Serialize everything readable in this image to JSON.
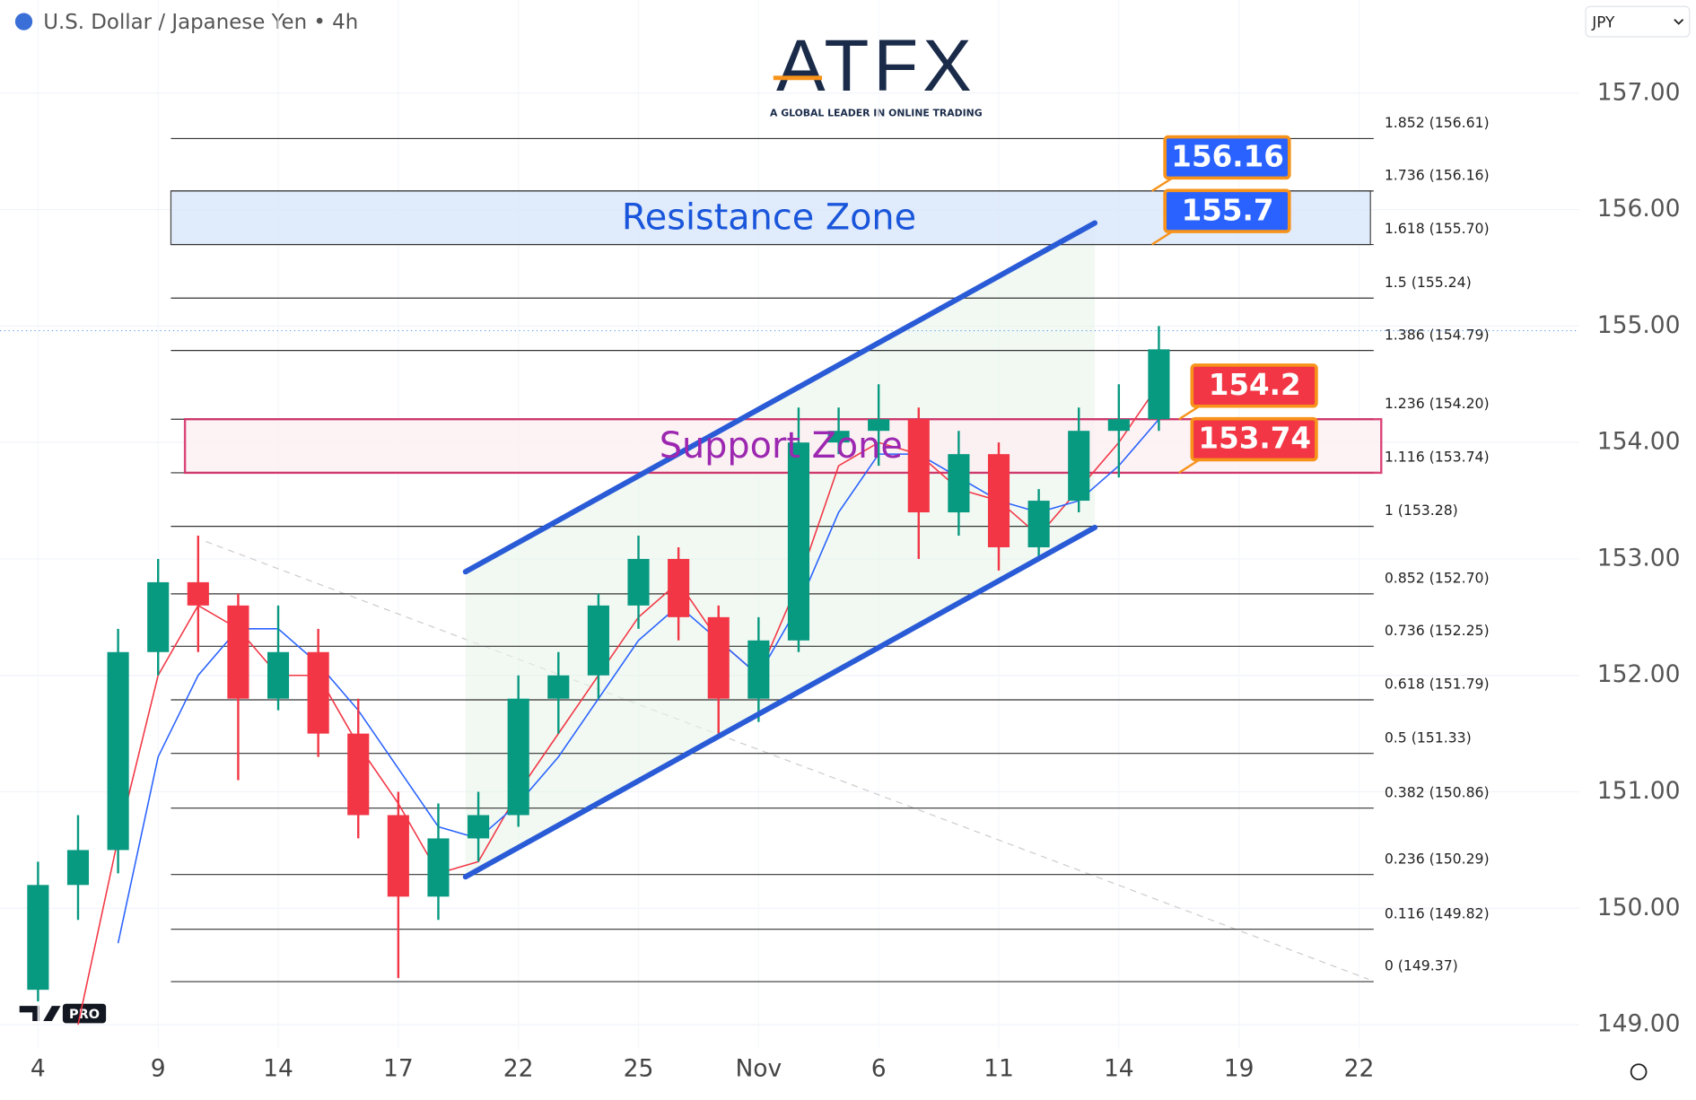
{
  "chart_data": {
    "type": "candlestick",
    "title": "U.S. Dollar / Japanese Yen • 4h",
    "currency": "JPY",
    "x": [
      0,
      1,
      2,
      3,
      4,
      5,
      6,
      7,
      8,
      9,
      10,
      11,
      12,
      13,
      14,
      15,
      16,
      17,
      18,
      19,
      20,
      21,
      22,
      23,
      24,
      25,
      26,
      27,
      28
    ],
    "open": [
      149.3,
      150.2,
      150.5,
      152.2,
      152.8,
      152.6,
      151.8,
      152.2,
      151.5,
      150.8,
      150.1,
      150.6,
      150.8,
      151.8,
      152.0,
      152.6,
      153.0,
      152.5,
      151.8,
      152.3,
      154.0,
      154.1,
      154.2,
      153.4,
      153.9,
      153.1,
      153.5,
      154.1,
      154.2
    ],
    "high": [
      150.4,
      150.8,
      152.4,
      153.0,
      153.2,
      152.7,
      152.6,
      152.4,
      151.8,
      151.0,
      150.9,
      151.0,
      152.0,
      152.2,
      152.7,
      153.2,
      153.1,
      152.6,
      152.5,
      154.3,
      154.3,
      154.5,
      154.3,
      154.1,
      154.0,
      153.6,
      154.3,
      154.5,
      155.0
    ],
    "low": [
      149.2,
      149.9,
      150.3,
      152.0,
      152.2,
      151.1,
      151.7,
      151.3,
      150.6,
      149.4,
      149.9,
      150.4,
      150.7,
      151.5,
      151.8,
      152.4,
      152.3,
      151.5,
      151.6,
      152.2,
      153.9,
      153.8,
      153.0,
      153.2,
      152.9,
      153.0,
      153.4,
      153.7,
      154.1
    ],
    "close": [
      150.2,
      150.5,
      152.2,
      152.8,
      152.6,
      151.8,
      152.2,
      151.5,
      150.8,
      150.1,
      150.6,
      150.8,
      151.8,
      152.0,
      152.6,
      153.0,
      152.5,
      151.8,
      152.3,
      154.0,
      154.1,
      154.2,
      153.4,
      153.9,
      153.1,
      153.5,
      154.1,
      154.2,
      154.8
    ],
    "up_color": "#089981",
    "down_color": "#f23645",
    "series": [
      {
        "color": "#f23645",
        "values": [
          null,
          149.0,
          150.6,
          152.0,
          152.6,
          152.4,
          152.0,
          152.0,
          151.4,
          150.9,
          150.3,
          150.4,
          151.0,
          151.5,
          152.0,
          152.5,
          152.8,
          152.3,
          152.0,
          152.8,
          153.8,
          154.0,
          153.9,
          153.6,
          153.5,
          153.2,
          153.6,
          154.0,
          154.5
        ]
      },
      {
        "color": "#2962ff",
        "values": [
          null,
          null,
          149.7,
          151.3,
          152.0,
          152.4,
          152.4,
          152.1,
          151.7,
          151.2,
          150.7,
          150.6,
          150.9,
          151.3,
          151.8,
          152.3,
          152.6,
          152.3,
          152.0,
          152.6,
          153.4,
          153.9,
          153.9,
          153.7,
          153.5,
          153.4,
          153.5,
          153.8,
          154.2
        ]
      }
    ],
    "xlim": [
      -0.95,
      38.5
    ],
    "ylim": [
      148.79,
      157.8
    ],
    "xticks": [
      {
        "value": 0,
        "label": "4"
      },
      {
        "value": 3,
        "label": "9"
      },
      {
        "value": 6,
        "label": "14"
      },
      {
        "value": 9,
        "label": "17"
      },
      {
        "value": 12,
        "label": "22"
      },
      {
        "value": 15,
        "label": "25"
      },
      {
        "value": 18,
        "label": "Nov"
      },
      {
        "value": 21,
        "label": "6"
      },
      {
        "value": 24,
        "label": "11"
      },
      {
        "value": 27,
        "label": "14"
      },
      {
        "value": 30,
        "label": "19"
      },
      {
        "value": 33,
        "label": "22"
      }
    ],
    "yticks": [
      {
        "value": 149,
        "label": "149.00"
      },
      {
        "value": 150,
        "label": "150.00"
      },
      {
        "value": 151,
        "label": "151.00"
      },
      {
        "value": 152,
        "label": "152.00"
      },
      {
        "value": 153,
        "label": "153.00"
      },
      {
        "value": 154,
        "label": "154.00"
      },
      {
        "value": 155,
        "label": "155.00"
      },
      {
        "value": 156,
        "label": "156.00"
      },
      {
        "value": 157,
        "label": "157.00"
      }
    ],
    "last_price": 154.96,
    "fib_levels": [
      {
        "value": 156.61,
        "label": "1.852 (156.61)"
      },
      {
        "value": 156.16,
        "label": "1.736 (156.16)"
      },
      {
        "value": 155.7,
        "label": "1.618 (155.70)"
      },
      {
        "value": 155.24,
        "label": "1.5 (155.24)"
      },
      {
        "value": 154.79,
        "label": "1.386 (154.79)"
      },
      {
        "value": 154.2,
        "label": "1.236 (154.20)"
      },
      {
        "value": 153.74,
        "label": "1.116 (153.74)"
      },
      {
        "value": 153.28,
        "label": "1 (153.28)"
      },
      {
        "value": 152.7,
        "label": "0.852 (152.70)"
      },
      {
        "value": 152.25,
        "label": "0.736 (152.25)"
      },
      {
        "value": 151.79,
        "label": "0.618 (151.79)"
      },
      {
        "value": 151.33,
        "label": "0.5 (151.33)"
      },
      {
        "value": 150.86,
        "label": "0.382 (150.86)"
      },
      {
        "value": 150.29,
        "label": "0.236 (150.29)"
      },
      {
        "value": 149.82,
        "label": "0.116 (149.82)"
      },
      {
        "value": 149.37,
        "label": "0 (149.37)"
      }
    ],
    "zones": [
      {
        "name": "Resistance Zone",
        "bottom": 155.7,
        "top": 156.16,
        "color": "#1a56db",
        "fill": "#dde9fb",
        "border": "#333333"
      },
      {
        "name": "Support Zone",
        "bottom": 153.74,
        "top": 154.2,
        "color": "#9c27b0",
        "fill": "#fdf1f3",
        "border": "#d6336c"
      }
    ],
    "callouts": [
      {
        "value": 156.16,
        "color": "#2962ff"
      },
      {
        "value": 155.7,
        "color": "#2962ff"
      },
      {
        "value": 154.2,
        "color": "#f23645"
      },
      {
        "value": 153.74,
        "color": "#f23645"
      }
    ],
    "channel": {
      "color": "#2a5bd7",
      "upper": {
        "x": [
          10.68,
          26.4
        ],
        "y": [
          152.89,
          155.885
        ]
      },
      "lower": {
        "x": [
          10.68,
          26.4
        ],
        "y": [
          150.27,
          153.27
        ]
      }
    },
    "trendline": {
      "x": [
        4.19,
        33.24
      ],
      "y": [
        153.15,
        149.39
      ]
    }
  },
  "branding": {
    "logo": "ATFX",
    "tagline": "A GLOBAL LEADER IN ONLINE TRADING",
    "badge": "PRO"
  }
}
